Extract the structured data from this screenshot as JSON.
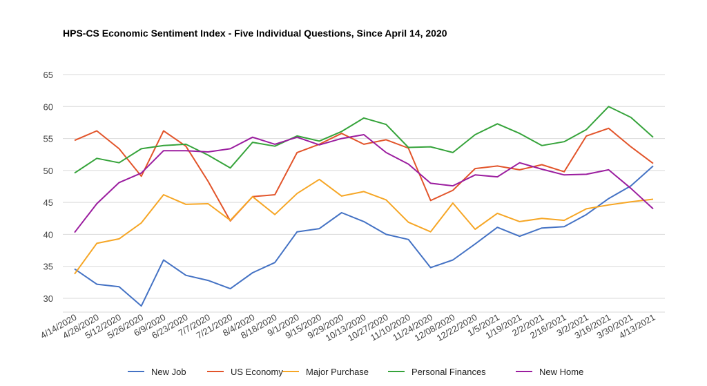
{
  "chart_data": {
    "type": "line",
    "title": "HPS-CS Economic Sentiment Index - Five Individual Questions, Since April 14, 2020",
    "x": [
      "4/14/2020",
      "4/28/2020",
      "5/12/2020",
      "5/26/2020",
      "6/9/2020",
      "6/23/2020",
      "7/7/2020",
      "7/21/2020",
      "8/4/2020",
      "8/18/2020",
      "9/1/2020",
      "9/15/2020",
      "9/29/2020",
      "10/13/2020",
      "10/27/2020",
      "11/10/2020",
      "11/24/2020",
      "12/08/2020",
      "12/22/2020",
      "1/5/2021",
      "1/19/2021",
      "2/2/2021",
      "2/16/2021",
      "3/2/2021",
      "3/16/2021",
      "3/30/2021",
      "4/13/2021"
    ],
    "yticks": [
      30,
      35,
      40,
      45,
      50,
      55,
      60,
      65
    ],
    "ylim": [
      27,
      65
    ],
    "grid": true,
    "legend_position": "bottom",
    "series": [
      {
        "name": "New Job",
        "color": "#4472c4",
        "values": [
          34.6,
          32.2,
          31.8,
          28.8,
          36.0,
          33.6,
          32.8,
          31.5,
          34.0,
          35.6,
          40.4,
          40.9,
          43.4,
          42.0,
          40.0,
          39.2,
          34.8,
          36.0,
          38.5,
          41.1,
          39.7,
          41.0,
          41.2,
          43.1,
          45.6,
          47.6,
          50.7
        ]
      },
      {
        "name": "US Economy",
        "color": "#e2542a",
        "values": [
          54.7,
          56.2,
          53.4,
          49.1,
          56.2,
          53.8,
          48.3,
          42.1,
          45.9,
          46.2,
          52.8,
          54.1,
          55.8,
          54.1,
          54.8,
          53.5,
          45.3,
          46.9,
          50.3,
          50.7,
          50.1,
          50.9,
          49.8,
          55.4,
          56.6,
          53.7,
          51.1
        ]
      },
      {
        "name": "Major Purchase",
        "color": "#f6a625",
        "values": [
          33.8,
          38.6,
          39.3,
          41.8,
          46.2,
          44.7,
          44.8,
          42.2,
          45.9,
          43.1,
          46.4,
          48.6,
          46.0,
          46.7,
          45.4,
          41.9,
          40.4,
          44.9,
          40.8,
          43.3,
          42.0,
          42.5,
          42.2,
          44.0,
          44.6,
          45.1,
          45.5
        ]
      },
      {
        "name": "Personal Finances",
        "color": "#35a33a",
        "values": [
          49.6,
          51.9,
          51.2,
          53.4,
          53.9,
          54.1,
          52.4,
          50.4,
          54.4,
          53.8,
          55.4,
          54.6,
          56.1,
          58.2,
          57.2,
          53.6,
          53.7,
          52.8,
          55.6,
          57.3,
          55.8,
          53.9,
          54.5,
          56.4,
          60.0,
          58.3,
          55.2
        ]
      },
      {
        "name": "New Home",
        "color": "#9b1d9f",
        "values": [
          40.3,
          44.8,
          48.1,
          49.6,
          53.1,
          53.1,
          52.9,
          53.4,
          55.2,
          54.1,
          55.2,
          54.0,
          55.0,
          55.6,
          52.8,
          51.0,
          48.0,
          47.6,
          49.3,
          49.0,
          51.2,
          50.2,
          49.3,
          49.4,
          50.1,
          47.2,
          44.0
        ]
      }
    ]
  }
}
